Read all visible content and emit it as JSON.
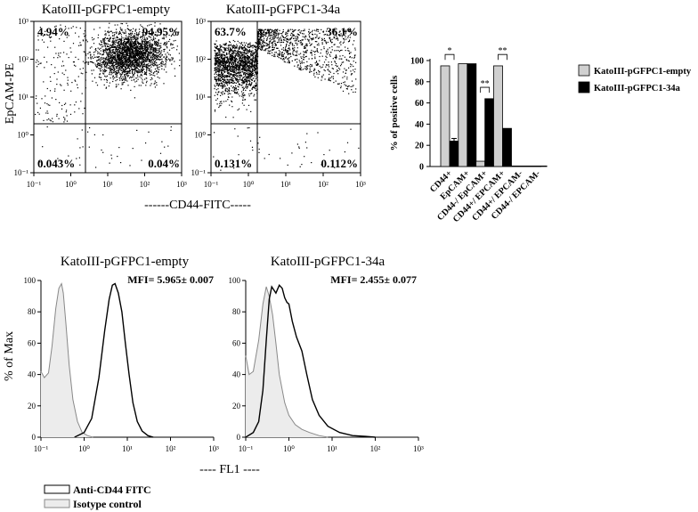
{
  "chart_data": [
    {
      "type": "scatter",
      "title": "KatoIII-pGFPC1-empty",
      "ylabel": "EpCAM-PE",
      "x_scale": "log",
      "y_scale": "log",
      "xlim": [
        0.1,
        1000
      ],
      "ylim": [
        0.1,
        1000
      ],
      "x_ticks": [
        "10⁻¹",
        "10⁰",
        "10¹",
        "10²",
        "10³"
      ],
      "y_ticks": [
        "10⁻¹",
        "10⁰",
        "10¹",
        "10²",
        "10³"
      ],
      "quadrants": {
        "upper_left": "4.94%",
        "upper_right": "94.95%",
        "lower_left": "0.043%",
        "lower_right": "0.04%"
      }
    },
    {
      "type": "scatter",
      "title": "KatoIII-pGFPC1-34a",
      "x_scale": "log",
      "y_scale": "log",
      "xlim": [
        0.1,
        1000
      ],
      "ylim": [
        0.1,
        1000
      ],
      "x_ticks": [
        "10⁻¹",
        "10⁰",
        "10¹",
        "10²",
        "10³"
      ],
      "y_ticks": [
        "10⁻¹",
        "10⁰",
        "10¹",
        "10²",
        "10³"
      ],
      "quadrants": {
        "upper_left": "63.7%",
        "upper_right": "36.1%",
        "lower_left": "0.131%",
        "lower_right": "0.112%"
      }
    },
    {
      "type": "bar",
      "ylabel": "% of positive cells",
      "ylim": [
        0,
        100
      ],
      "y_ticks": [
        "0",
        "20",
        "40",
        "60",
        "80",
        "100"
      ],
      "categories": [
        "CD44+",
        "EpCAM+",
        "CD44-/ EpCAM+",
        "CD44+/ EPCAM+",
        "CD44+/ EPCAM-",
        "CD44-/ EPCAM-"
      ],
      "series": [
        {
          "name": "KatoIII-pGFPC1-empty",
          "color": "#d0d0d0",
          "values": [
            95,
            97,
            5,
            95,
            0.5,
            0.5
          ]
        },
        {
          "name": "KatoIII-pGFPC1-34a",
          "color": "#000000",
          "values": [
            24,
            97,
            64,
            36,
            0.5,
            0.5
          ],
          "errors": [
            2.5,
            0,
            0,
            0,
            0,
            0
          ]
        }
      ],
      "significance": [
        {
          "category": "CD44+",
          "label": "*"
        },
        {
          "category": "CD44-/ EpCAM+",
          "label": "**"
        },
        {
          "category": "CD44+/ EPCAM+",
          "label": "**"
        }
      ],
      "legend_placement": "right"
    },
    {
      "type": "line",
      "title": "KatoIII-pGFPC1-empty",
      "ylabel": "% of Max",
      "x_scale": "log",
      "xlim": [
        0.1,
        1000
      ],
      "ylim": [
        0,
        100
      ],
      "x_ticks": [
        "10⁻¹",
        "10⁰",
        "10¹",
        "10²",
        "10³"
      ],
      "y_ticks": [
        "0",
        "20",
        "40",
        "60",
        "80",
        "100"
      ],
      "annotation": "MFI= 5.965± 0.007",
      "series": [
        {
          "name": "Isotype control",
          "color": "#888888",
          "fill": "#ececec",
          "x": [
            0.1,
            0.12,
            0.15,
            0.18,
            0.22,
            0.26,
            0.3,
            0.33,
            0.38,
            0.45,
            0.55,
            0.7,
            0.9,
            1.2,
            1.6
          ],
          "y": [
            42,
            38,
            41,
            58,
            82,
            95,
            98,
            92,
            72,
            46,
            24,
            10,
            3,
            1,
            0
          ]
        },
        {
          "name": "Anti-CD44 FITC",
          "color": "#000000",
          "x": [
            0.6,
            1.0,
            1.5,
            2.2,
            3.0,
            3.8,
            4.5,
            5.2,
            6.2,
            7.5,
            9,
            11,
            13.5,
            17,
            22,
            30,
            40
          ],
          "y": [
            0,
            3,
            12,
            38,
            68,
            88,
            97,
            98,
            92,
            80,
            60,
            40,
            22,
            10,
            4,
            1,
            0
          ]
        }
      ]
    },
    {
      "type": "line",
      "title": "KatoIII-pGFPC1-34a",
      "x_scale": "log",
      "xlim": [
        0.1,
        1000
      ],
      "ylim": [
        0,
        100
      ],
      "x_ticks": [
        "10⁻¹",
        "10⁰",
        "10¹",
        "10²",
        "10³"
      ],
      "y_ticks": [
        "0",
        "20",
        "40",
        "60",
        "80",
        "100"
      ],
      "annotation": "MFI= 2.455± 0.077",
      "series": [
        {
          "name": "Isotype control",
          "color": "#888888",
          "fill": "#ececec",
          "x": [
            0.1,
            0.12,
            0.15,
            0.2,
            0.25,
            0.3,
            0.35,
            0.42,
            0.5,
            0.6,
            0.8,
            1.0,
            1.4,
            2.0,
            3.0,
            5.0,
            8.0
          ],
          "y": [
            52,
            40,
            42,
            62,
            85,
            96,
            90,
            78,
            60,
            40,
            22,
            14,
            8,
            5,
            3,
            1,
            0
          ]
        },
        {
          "name": "Anti-CD44 FITC",
          "color": "#000000",
          "x": [
            0.1,
            0.15,
            0.2,
            0.25,
            0.3,
            0.35,
            0.4,
            0.5,
            0.6,
            0.7,
            0.8,
            0.9,
            1.0,
            1.2,
            1.5,
            2.0,
            2.6,
            3.5,
            5.0,
            8.0,
            15,
            30,
            60,
            100
          ],
          "y": [
            0,
            3,
            10,
            30,
            62,
            88,
            96,
            92,
            97,
            95,
            89,
            86,
            85,
            74,
            64,
            55,
            40,
            24,
            14,
            7,
            3,
            1,
            0.5,
            0
          ]
        }
      ]
    }
  ],
  "flow_xlabel": "------CD44-FITC-----",
  "hist_xlabel": "---- FL1 ----",
  "hist_legend": [
    "Anti-CD44 FITC",
    "Isotype control"
  ]
}
